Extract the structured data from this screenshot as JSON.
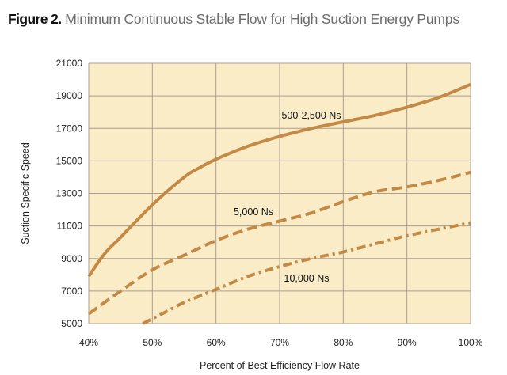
{
  "figure": {
    "label": "Figure 2.",
    "title": "Minimum Continuous Stable Flow for High Suction Energy Pumps"
  },
  "colors": {
    "plot_background": "#fbecc8",
    "grid": "#a99f90",
    "series": "#c48a45"
  },
  "chart_data": {
    "type": "line",
    "xlabel": "Percent of Best Efficiency Flow Rate",
    "ylabel": "Suction Specific Speed",
    "xlim": [
      40,
      100
    ],
    "ylim": [
      5000,
      21000
    ],
    "x_ticks": [
      40,
      50,
      60,
      70,
      80,
      90,
      100
    ],
    "x_tick_labels": [
      "40%",
      "50%",
      "60%",
      "70%",
      "80%",
      "90%",
      "100%"
    ],
    "y_ticks": [
      5000,
      7000,
      9000,
      11000,
      13000,
      15000,
      17000,
      19000,
      21000
    ],
    "y_tick_labels": [
      "5000",
      "7000",
      "9000",
      "11000",
      "13000",
      "15000",
      "17000",
      "19000",
      "21000"
    ],
    "grid": true,
    "series": [
      {
        "name": "500-2,500 Ns",
        "style": "solid",
        "x": [
          40,
          42.5,
          45,
          50,
          55,
          57.5,
          60,
          65,
          70,
          75,
          80,
          85,
          90,
          95,
          100
        ],
        "y": [
          7900,
          9300,
          10300,
          12300,
          14000,
          14600,
          15100,
          15900,
          16500,
          17000,
          17400,
          17800,
          18300,
          18900,
          19700
        ]
      },
      {
        "name": "5,000 Ns",
        "style": "dashed",
        "x": [
          40,
          45,
          50,
          55,
          60,
          65,
          70,
          75,
          80,
          85,
          90,
          95,
          100
        ],
        "y": [
          5600,
          7000,
          8300,
          9200,
          10100,
          10800,
          11300,
          11800,
          12500,
          13100,
          13400,
          13800,
          14300
        ]
      },
      {
        "name": "10,000 Ns",
        "style": "dash-dot",
        "x": [
          48.5,
          52,
          55,
          60,
          65,
          70,
          75,
          80,
          85,
          90,
          95,
          100
        ],
        "y": [
          5000,
          5700,
          6300,
          7100,
          7900,
          8500,
          9000,
          9400,
          9900,
          10400,
          10800,
          11200
        ]
      }
    ],
    "annotations": [
      {
        "text": "500-2,500 Ns",
        "series": "500-2,500 Ns"
      },
      {
        "text": "5,000 Ns",
        "series": "5,000 Ns"
      },
      {
        "text": "10,000 Ns",
        "series": "10,000 Ns"
      }
    ]
  }
}
